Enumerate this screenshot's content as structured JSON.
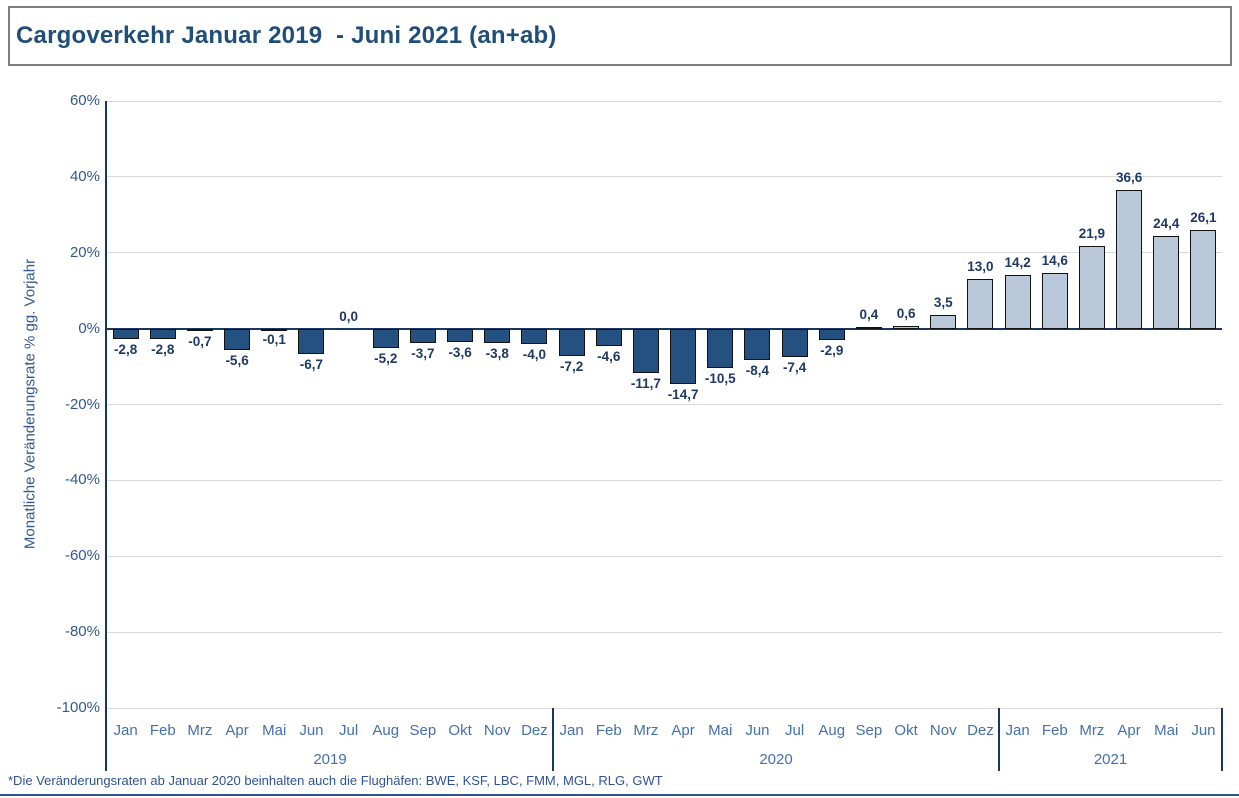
{
  "title": "Cargoverkehr Januar 2019  - Juni 2021 (an+ab)",
  "footnote": "*Die Veränderungsraten ab Januar 2020 beinhalten auch die Flughäfen: BWE, KSF, LBC, FMM, MGL, RLG, GWT",
  "colors": {
    "title_text": "#1F4E79",
    "title_box_border": "#7F7F7F",
    "footnote_text": "#2E5395",
    "bottom_rule": "#2E5395"
  },
  "chart_data": {
    "type": "bar",
    "title": "Cargoverkehr Januar 2019  - Juni 2021 (an+ab)",
    "xlabel": "",
    "ylabel": "Monatliche Veränderungsrate % gg. Vorjahr",
    "ylim": [
      -100,
      60
    ],
    "ytick_step": 20,
    "ytick_suffix": "%",
    "grid": true,
    "legend_position": "none",
    "decimal_separator": ",",
    "groups": [
      {
        "year": "2019",
        "months": [
          "Jan",
          "Feb",
          "Mrz",
          "Apr",
          "Mai",
          "Jun",
          "Jul",
          "Aug",
          "Sep",
          "Okt",
          "Nov",
          "Dez"
        ],
        "values": [
          -2.8,
          -2.8,
          -0.7,
          -5.6,
          -0.1,
          -6.7,
          0.0,
          -5.2,
          -3.7,
          -3.6,
          -3.8,
          -4.0
        ]
      },
      {
        "year": "2020",
        "months": [
          "Jan",
          "Feb",
          "Mrz",
          "Apr",
          "Mai",
          "Jun",
          "Jul",
          "Aug",
          "Sep",
          "Okt",
          "Nov",
          "Dez"
        ],
        "values": [
          -7.2,
          -4.6,
          -11.7,
          -14.7,
          -10.5,
          -8.4,
          -7.4,
          -2.9,
          0.4,
          0.6,
          3.5,
          13.0
        ]
      },
      {
        "year": "2021",
        "months": [
          "Jan",
          "Feb",
          "Mrz",
          "Apr",
          "Mai",
          "Jun"
        ],
        "values": [
          14.2,
          14.6,
          21.9,
          36.6,
          24.4,
          26.1
        ]
      }
    ],
    "colors": {
      "negative_fill": "#24517F",
      "positive_fill": "#B9C9DA",
      "bar_border": "#121212",
      "gridline": "#D9D9D9",
      "axis_line": "#17375E",
      "axis_text": "#31598F",
      "category_text": "#4470AD",
      "value_text": "#1F3864"
    }
  }
}
